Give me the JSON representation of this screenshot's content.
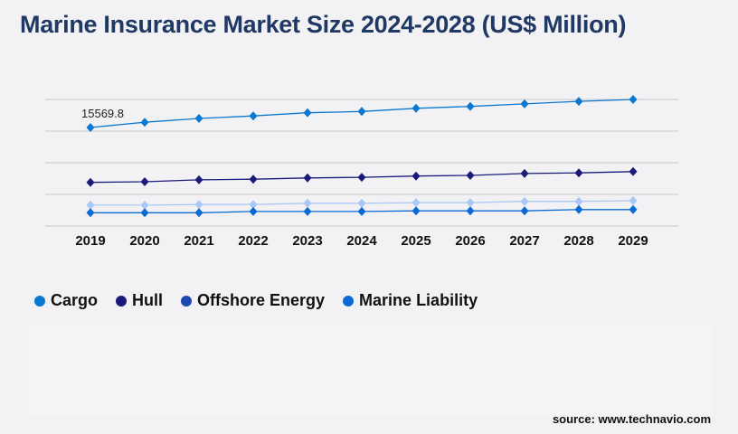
{
  "title": "Marine Insurance Market Size 2024-2028 (US$ Million)",
  "source": "source: www.technavio.com",
  "chart_data": {
    "type": "line",
    "title": "Marine Insurance Market Size 2024-2028 (US$ Million)",
    "xlabel": "",
    "ylabel": "",
    "categories": [
      "2019",
      "2020",
      "2021",
      "2022",
      "2023",
      "2024",
      "2025",
      "2026",
      "2027",
      "2028",
      "2029"
    ],
    "ylim": [
      0,
      20000
    ],
    "grid": true,
    "legend_position": "bottom-left",
    "annotation": "15569.8",
    "series": [
      {
        "name": "Cargo",
        "color": "#0a78d0",
        "line_color": "#0a78d0",
        "values": [
          15569.8,
          16400,
          17000,
          17400,
          17900,
          18100,
          18600,
          18900,
          19300,
          19700,
          20000
        ]
      },
      {
        "name": "Hull",
        "color": "#1a1a7a",
        "line_color": "#1a1a7a",
        "values": [
          6900,
          7000,
          7300,
          7400,
          7600,
          7700,
          7900,
          8000,
          8300,
          8400,
          8600
        ]
      },
      {
        "name": "Offshore Energy",
        "color": "#1f45b0",
        "line_color": "#a9c8f5",
        "values": [
          3300,
          3300,
          3400,
          3400,
          3600,
          3600,
          3700,
          3700,
          3900,
          3900,
          4000
        ]
      },
      {
        "name": "Marine Liability",
        "color": "#0a6ad4",
        "line_color": "#0a6ad4",
        "values": [
          2100,
          2100,
          2100,
          2300,
          2300,
          2300,
          2400,
          2400,
          2400,
          2600,
          2600
        ]
      }
    ]
  }
}
